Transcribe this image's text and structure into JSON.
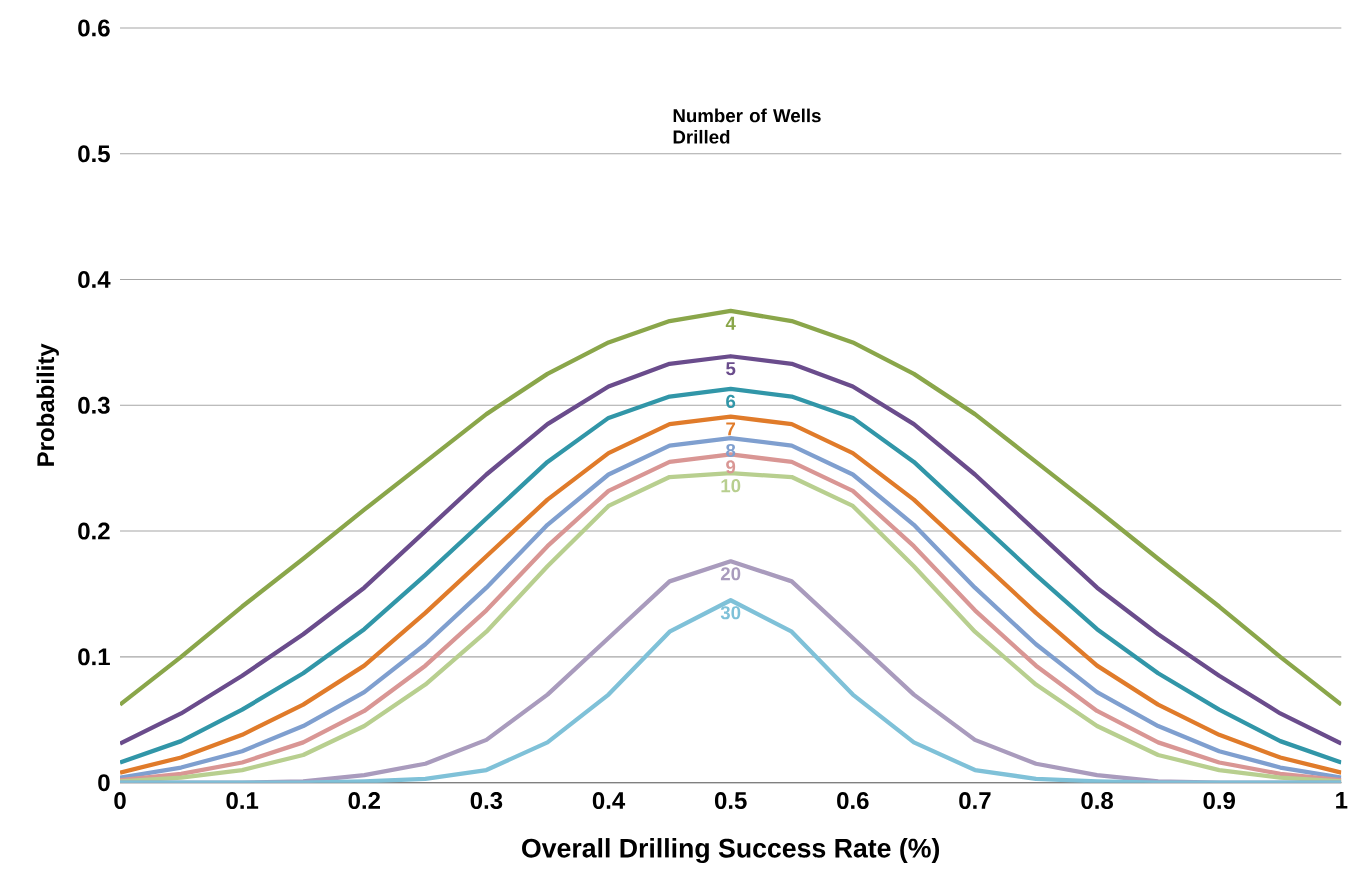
{
  "chart_data": {
    "type": "line",
    "xlabel": "Overall Drilling Success Rate (%)",
    "ylabel": "Probability",
    "annotations": [
      "Number of Wells Drilled"
    ],
    "x": [
      0,
      0.05,
      0.1,
      0.15,
      0.2,
      0.25,
      0.3,
      0.35,
      0.4,
      0.45,
      0.5,
      0.55,
      0.6,
      0.65,
      0.7,
      0.75,
      0.8,
      0.85,
      0.9,
      0.95,
      1
    ],
    "series": [
      {
        "name": "4",
        "color": "#8aa64a",
        "values": [
          0.062,
          0.1,
          0.14,
          0.178,
          0.217,
          0.255,
          0.293,
          0.325,
          0.35,
          0.367,
          0.375,
          0.367,
          0.35,
          0.325,
          0.293,
          0.255,
          0.217,
          0.178,
          0.14,
          0.1,
          0.062
        ]
      },
      {
        "name": "5",
        "color": "#6a4c8c",
        "values": [
          0.031,
          0.055,
          0.085,
          0.118,
          0.155,
          0.2,
          0.245,
          0.285,
          0.315,
          0.333,
          0.339,
          0.333,
          0.315,
          0.285,
          0.245,
          0.2,
          0.155,
          0.118,
          0.085,
          0.055,
          0.031
        ]
      },
      {
        "name": "6",
        "color": "#3196a8",
        "values": [
          0.016,
          0.033,
          0.058,
          0.087,
          0.122,
          0.165,
          0.21,
          0.255,
          0.29,
          0.307,
          0.313,
          0.307,
          0.29,
          0.255,
          0.21,
          0.165,
          0.122,
          0.087,
          0.058,
          0.033,
          0.016
        ]
      },
      {
        "name": "7",
        "color": "#e07b2a",
        "values": [
          0.008,
          0.02,
          0.038,
          0.062,
          0.093,
          0.135,
          0.18,
          0.225,
          0.262,
          0.285,
          0.291,
          0.285,
          0.262,
          0.225,
          0.18,
          0.135,
          0.093,
          0.062,
          0.038,
          0.02,
          0.008
        ]
      },
      {
        "name": "8",
        "color": "#7f9fcf",
        "values": [
          0.004,
          0.012,
          0.025,
          0.045,
          0.072,
          0.11,
          0.155,
          0.205,
          0.245,
          0.268,
          0.274,
          0.268,
          0.245,
          0.205,
          0.155,
          0.11,
          0.072,
          0.045,
          0.025,
          0.012,
          0.004
        ]
      },
      {
        "name": "9",
        "color": "#d99694",
        "values": [
          0.002,
          0.007,
          0.016,
          0.032,
          0.057,
          0.093,
          0.137,
          0.188,
          0.232,
          0.255,
          0.261,
          0.255,
          0.232,
          0.188,
          0.137,
          0.093,
          0.057,
          0.032,
          0.016,
          0.007,
          0.002
        ]
      },
      {
        "name": "10",
        "color": "#b8cf8f",
        "values": [
          0.001,
          0.004,
          0.01,
          0.022,
          0.045,
          0.078,
          0.12,
          0.172,
          0.22,
          0.243,
          0.246,
          0.243,
          0.22,
          0.172,
          0.12,
          0.078,
          0.045,
          0.022,
          0.01,
          0.004,
          0.001
        ]
      },
      {
        "name": "20",
        "color": "#a99bbd",
        "values": [
          0,
          0,
          0,
          0.001,
          0.006,
          0.015,
          0.034,
          0.07,
          0.115,
          0.16,
          0.176,
          0.16,
          0.115,
          0.07,
          0.034,
          0.015,
          0.006,
          0.001,
          0,
          0,
          0
        ]
      },
      {
        "name": "30",
        "color": "#7fc1d8",
        "values": [
          0,
          0,
          0,
          0,
          0.001,
          0.003,
          0.01,
          0.032,
          0.07,
          0.12,
          0.145,
          0.12,
          0.07,
          0.032,
          0.01,
          0.003,
          0.001,
          0,
          0,
          0,
          0
        ]
      }
    ],
    "xlim": [
      0,
      1
    ],
    "xticks": [
      0,
      0.1,
      0.2,
      0.3,
      0.4,
      0.5,
      0.6,
      0.7,
      0.8,
      0.9,
      1
    ],
    "ylim": [
      0,
      0.6
    ],
    "yticks": [
      0,
      0.1,
      0.2,
      0.3,
      0.4,
      0.5,
      0.6
    ],
    "grid": "y",
    "legend": false,
    "marker": "none",
    "line_style": "solid"
  }
}
